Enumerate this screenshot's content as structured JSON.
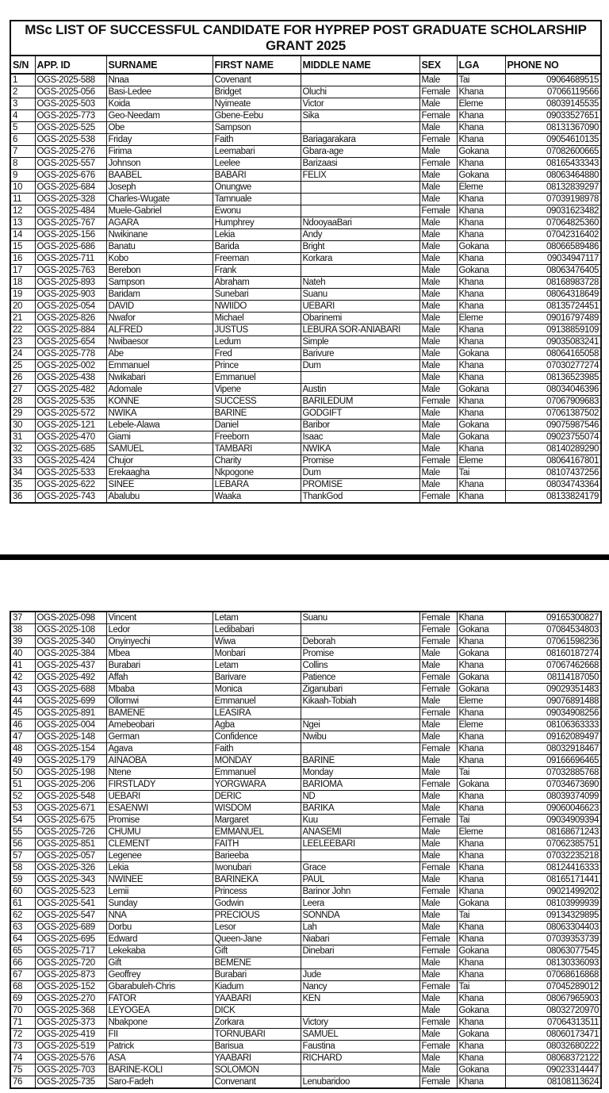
{
  "title": "MSc LIST OF SUCCESSFUL CANDIDATE FOR HYPREP POST GRADUATE SCHOLARSHIP GRANT 2025",
  "columns": [
    "S/N",
    "APP. ID",
    "SURNAME",
    "FIRST NAME",
    "MIDDLE NAME",
    "SEX",
    "LGA",
    "PHONE NO"
  ],
  "rows": [
    [
      "1",
      "OGS-2025-588",
      "Nnaa",
      "Covenant",
      "",
      "Male",
      "Tai",
      "09064689515"
    ],
    [
      "2",
      "OGS-2025-056",
      "Basi-Ledee",
      "Bridget",
      "Oluchi",
      "Female",
      "Khana",
      "07066119566"
    ],
    [
      "3",
      "OGS-2025-503",
      "Koida",
      "Nyimeate",
      "Victor",
      "Male",
      "Eleme",
      "08039145535"
    ],
    [
      "4",
      "OGS-2025-773",
      "Geo-Needam",
      "Gbene-Eebu",
      "Sika",
      "Female",
      "Khana",
      "09033527651"
    ],
    [
      "5",
      "OGS-2025-525",
      "Obe",
      "Sampson",
      "",
      "Male",
      "Khana",
      "08131367090"
    ],
    [
      "6",
      "OGS-2025-538",
      "Friday",
      "Faith",
      "Bariagarakara",
      "Female",
      "Khana",
      "09054610135"
    ],
    [
      "7",
      "OGS-2025-276",
      "Firima",
      "Leemabari",
      "Gbara-age",
      "Male",
      "Gokana",
      "07082600665"
    ],
    [
      "8",
      "OGS-2025-557",
      "Johnson",
      "Leelee",
      "Barizaasi",
      "Female",
      "Khana",
      "08165433343"
    ],
    [
      "9",
      "OGS-2025-676",
      "BAABEL",
      "BABARI",
      "FELIX",
      "Male",
      "Gokana",
      "08063464880"
    ],
    [
      "10",
      "OGS-2025-684",
      "Joseph",
      "Onungwe",
      "",
      "Male",
      "Eleme",
      "08132839297"
    ],
    [
      "11",
      "OGS-2025-328",
      "Charles-Wugate",
      "Tamnuale",
      "",
      "Male",
      "Khana",
      "07039198978"
    ],
    [
      "12",
      "OGS-2025-484",
      "Muele-Gabriel",
      "Ewonu",
      "",
      "Female",
      "Khana",
      "09031623482"
    ],
    [
      "13",
      "OGS-2025-767",
      "AGARA",
      "Humphrey",
      "NdooyaaBari",
      "Male",
      "Khana",
      "07064825360"
    ],
    [
      "14",
      "OGS-2025-156",
      "Nwikinane",
      "Lekia",
      "Andy",
      "Male",
      "Khana",
      "07042316402"
    ],
    [
      "15",
      "OGS-2025-686",
      "Banatu",
      "Barida",
      "Bright",
      "Male",
      "Gokana",
      "08066589486"
    ],
    [
      "16",
      "OGS-2025-711",
      "Kobo",
      "Freeman",
      "Korkara",
      "Male",
      "Khana",
      "09034947117"
    ],
    [
      "17",
      "OGS-2025-763",
      "Berebon",
      "Frank",
      "",
      "Male",
      "Gokana",
      "08063476405"
    ],
    [
      "18",
      "OGS-2025-893",
      "Sampson",
      "Abraham",
      "Nateh",
      "Male",
      "Khana",
      "08168983728"
    ],
    [
      "19",
      "OGS-2025-903",
      "Baridam",
      "Sunebari",
      "Suanu",
      "Male",
      "Khana",
      "08064318649"
    ],
    [
      "20",
      "OGS-2025-054",
      "DAVID",
      "NWIIDO",
      "UEBARI",
      "Male",
      "Khana",
      "08135724451"
    ],
    [
      "21",
      "OGS-2025-826",
      "Nwafor",
      "Michael",
      "Obarinemi",
      "Male",
      "Eleme",
      "09016797489"
    ],
    [
      "22",
      "OGS-2025-884",
      "ALFRED",
      "JUSTUS",
      "LEBURA SOR-ANIABARI",
      "Male",
      "Khana",
      "09138859109"
    ],
    [
      "23",
      "OGS-2025-654",
      "Nwibaesor",
      "Ledum",
      "Simple",
      "Male",
      "Khana",
      "09035083241"
    ],
    [
      "24",
      "OGS-2025-778",
      "Abe",
      "Fred",
      "Barivure",
      "Male",
      "Gokana",
      "08064165058"
    ],
    [
      "25",
      "OGS-2025-002",
      "Emmanuel",
      "Prince",
      "Dum",
      "Male",
      "Khana",
      "07030277274"
    ],
    [
      "26",
      "OGS-2025-438",
      "Nwikabari",
      "Emmanuel",
      "",
      "Male",
      "Khana",
      "08136523985"
    ],
    [
      "27",
      "OGS-2025-482",
      "Adomale",
      "Vipene",
      "Austin",
      "Male",
      "Gokana",
      "08034046396"
    ],
    [
      "28",
      "OGS-2025-535",
      "KONNE",
      "SUCCESS",
      "BARILEDUM",
      "Female",
      "Khana",
      "07067909683"
    ],
    [
      "29",
      "OGS-2025-572",
      "NWIKA",
      "BARINE",
      "GODGIFT",
      "Male",
      "Khana",
      "07061387502"
    ],
    [
      "30",
      "OGS-2025-121",
      "Lebele-Alawa",
      "Daniel",
      "Baribor",
      "Male",
      "Gokana",
      "09075987546"
    ],
    [
      "31",
      "OGS-2025-470",
      "Giami",
      "Freeborn",
      "Isaac",
      "Male",
      "Gokana",
      "09023755074"
    ],
    [
      "32",
      "OGS-2025-685",
      "SAMUEL",
      "TAMBARI",
      "NWIKA",
      "Male",
      "Khana",
      "08140289290"
    ],
    [
      "33",
      "OGS-2025-424",
      "Chujor",
      "Charity",
      "Promise",
      "Female",
      "Eleme",
      "08064167801"
    ],
    [
      "34",
      "OGS-2025-533",
      "Erekaagha",
      "Nkpogone",
      "Dum",
      "Male",
      "Tai",
      "08107437256"
    ],
    [
      "35",
      "OGS-2025-622",
      "SINEE",
      "LEBARA",
      "PROMISE",
      "Male",
      "Khana",
      "08034743364"
    ],
    [
      "36",
      "OGS-2025-743",
      "Abalubu",
      "Waaka",
      "ThankGod",
      "Female",
      "Khana",
      "08133824179"
    ],
    [
      "37",
      "OGS-2025-098",
      "Vincent",
      "Letam",
      "Suanu",
      "Female",
      "Khana",
      "09165300827"
    ],
    [
      "38",
      "OGS-2025-108",
      "Ledor",
      "Ledibabari",
      "",
      "Female",
      "Gokana",
      "07084534803"
    ],
    [
      "39",
      "OGS-2025-340",
      "Onyinyechi",
      "Wiwa",
      "Deborah",
      "Female",
      "Khana",
      "07061598236"
    ],
    [
      "40",
      "OGS-2025-384",
      "Mbea",
      "Monbari",
      "Promise",
      "Male",
      "Gokana",
      "08160187274"
    ],
    [
      "41",
      "OGS-2025-437",
      "Burabari",
      "Letam",
      "Collins",
      "Male",
      "Khana",
      "07067462668"
    ],
    [
      "42",
      "OGS-2025-492",
      "Affah",
      "Barivare",
      "Patience",
      "Female",
      "Gokana",
      "08114187050"
    ],
    [
      "43",
      "OGS-2025-688",
      "Mbaba",
      "Monica",
      "Ziganubari",
      "Female",
      "Gokana",
      "09029351483"
    ],
    [
      "44",
      "OGS-2025-699",
      "Ollornwi",
      "Emmanuel",
      "Kikaah-Tobiah",
      "Male",
      "Eleme",
      "09076891488"
    ],
    [
      "45",
      "OGS-2025-891",
      "BAMENE",
      "LEASIRA",
      "",
      "Female",
      "Khana",
      "09034908256"
    ],
    [
      "46",
      "OGS-2025-004",
      "Amebeobari",
      "Agba",
      "Ngei",
      "Male",
      "Eleme",
      "08106363333"
    ],
    [
      "47",
      "OGS-2025-148",
      "German",
      "Confidence",
      "Nwibu",
      "Male",
      "Khana",
      "09162089497"
    ],
    [
      "48",
      "OGS-2025-154",
      "Agava",
      "Faith",
      "",
      "Female",
      "Khana",
      "08032918467"
    ],
    [
      "49",
      "OGS-2025-179",
      "AINAOBA",
      "MONDAY",
      "BARINE",
      "Male",
      "Khana",
      "09166696465"
    ],
    [
      "50",
      "OGS-2025-198",
      "Ntene",
      "Emmanuel",
      "Monday",
      "Male",
      "Tai",
      "07032885768"
    ],
    [
      "51",
      "OGS-2025-206",
      "FIRSTLADY",
      "YORGWARA",
      "BARIOMA",
      "Female",
      "Gokana",
      "07034673690"
    ],
    [
      "52",
      "OGS-2025-548",
      "UEBARI",
      "DERIC",
      "ND",
      "Male",
      "Khana",
      "08039374099"
    ],
    [
      "53",
      "OGS-2025-671",
      "ESAENWI",
      "WISDOM",
      "BARIKA",
      "Male",
      "Khana",
      "09060046623"
    ],
    [
      "54",
      "OGS-2025-675",
      "Promise",
      "Margaret",
      "Kuu",
      "Female",
      "Tai",
      "09034909394"
    ],
    [
      "55",
      "OGS-2025-726",
      "CHUMU",
      "EMMANUEL",
      "ANASEMI",
      "Male",
      "Eleme",
      "08168671243"
    ],
    [
      "56",
      "OGS-2025-851",
      "CLEMENT",
      "FAITH",
      "LEELEEBARI",
      "Male",
      "Khana",
      "07062385751"
    ],
    [
      "57",
      "OGS-2025-057",
      "Legenee",
      "Barieeba",
      "",
      "Male",
      "Khana",
      "07032235218"
    ],
    [
      "58",
      "OGS-2025-326",
      "Lekia",
      "Iwonubari",
      "Grace",
      "Female",
      "Khana",
      "08124416333"
    ],
    [
      "59",
      "OGS-2025-343",
      "NWINEE",
      "BARINEKA",
      "PAUL",
      "Male",
      "Khana",
      "08165171441"
    ],
    [
      "60",
      "OGS-2025-523",
      "Lemii",
      "Princess",
      "Barinor John",
      "Female",
      "Khana",
      "09021499202"
    ],
    [
      "61",
      "OGS-2025-541",
      "Sunday",
      "Godwin",
      "Leera",
      "Male",
      "Gokana",
      "08103999939"
    ],
    [
      "62",
      "OGS-2025-547",
      "NNA",
      "PRECIOUS",
      "SONNDA",
      "Male",
      "Tai",
      "09134329895"
    ],
    [
      "63",
      "OGS-2025-689",
      "Dorbu",
      "Lesor",
      "Lah",
      "Male",
      "Khana",
      "08063304403"
    ],
    [
      "64",
      "OGS-2025-695",
      "Edward",
      "Queen-Jane",
      "Niabari",
      "Female",
      "Khana",
      "07039353739"
    ],
    [
      "65",
      "OGS-2025-717",
      "Lekekaba",
      "Gift",
      "Dinebari",
      "Female",
      "Gokana",
      "08063077545"
    ],
    [
      "66",
      "OGS-2025-720",
      "Gift",
      "BEMENE",
      "",
      "Male",
      "Khana",
      "08130336093"
    ],
    [
      "67",
      "OGS-2025-873",
      "Geoffrey",
      "Burabari",
      "Jude",
      "Male",
      "Khana",
      "07068616868"
    ],
    [
      "68",
      "OGS-2025-152",
      "Gbarabuleh-Chris",
      "Kiadum",
      "Nancy",
      "Female",
      "Tai",
      "07045289012"
    ],
    [
      "69",
      "OGS-2025-270",
      "FATOR",
      "YAABARI",
      "KEN",
      "Male",
      "Khana",
      "08067965903"
    ],
    [
      "70",
      "OGS-2025-368",
      "LEYOGEA",
      "DICK",
      "",
      "Male",
      "Gokana",
      "08032720970"
    ],
    [
      "71",
      "OGS-2025-373",
      "Nbakpone",
      "Zorkara",
      "Victory",
      "Female",
      "Khana",
      "07064313511"
    ],
    [
      "72",
      "OGS-2025-419",
      "FII",
      "TORNUBARI",
      "SAMUEL",
      "Male",
      "Gokana",
      "08060173471"
    ],
    [
      "73",
      "OGS-2025-519",
      "Patrick",
      "Barisua",
      "Faustina",
      "Female",
      "Khana",
      "08032680222"
    ],
    [
      "74",
      "OGS-2025-576",
      "ASA",
      "YAABARI",
      "RICHARD",
      "Male",
      "Khana",
      "08068372122"
    ],
    [
      "75",
      "OGS-2025-703",
      "BARINE-KOLI",
      "SOLOMON",
      "",
      "Male",
      "Gokana",
      "09023314447"
    ],
    [
      "76",
      "OGS-2025-735",
      "Saro-Fadeh",
      "Convenant",
      "Lenubaridoo",
      "Female",
      "Khana",
      "08108113624"
    ]
  ]
}
